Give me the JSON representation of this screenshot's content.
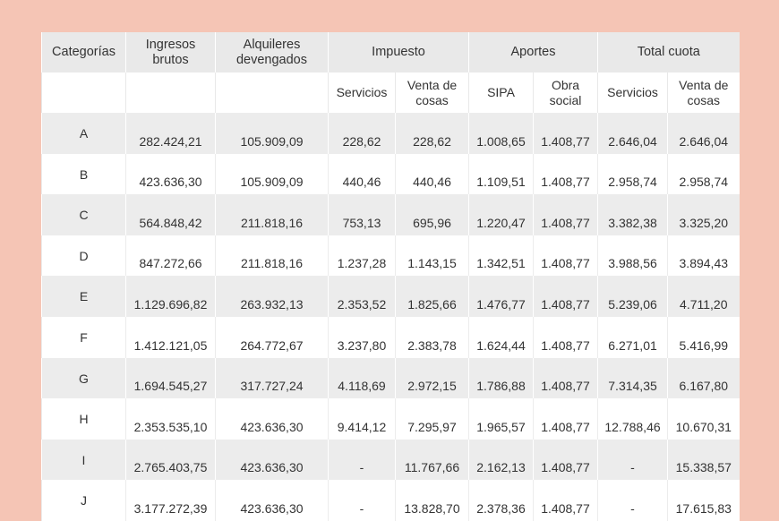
{
  "table": {
    "header_top": [
      "Categorías",
      "Ingresos brutos",
      "Alquileres devengados",
      "Impuesto",
      "Aportes",
      "Total cuota"
    ],
    "header_sub": [
      "Servicios",
      "Venta de cosas",
      "SIPA",
      "Obra social",
      "Servicios",
      "Venta de cosas"
    ],
    "rows": [
      [
        "A",
        "282.424,21",
        "105.909,09",
        "228,62",
        "228,62",
        "1.008,65",
        "1.408,77",
        "2.646,04",
        "2.646,04"
      ],
      [
        "B",
        "423.636,30",
        "105.909,09",
        "440,46",
        "440,46",
        "1.109,51",
        "1.408,77",
        "2.958,74",
        "2.958,74"
      ],
      [
        "C",
        "564.848,42",
        "211.818,16",
        "753,13",
        "695,96",
        "1.220,47",
        "1.408,77",
        "3.382,38",
        "3.325,20"
      ],
      [
        "D",
        "847.272,66",
        "211.818,16",
        "1.237,28",
        "1.143,15",
        "1.342,51",
        "1.408,77",
        "3.988,56",
        "3.894,43"
      ],
      [
        "E",
        "1.129.696,82",
        "263.932,13",
        "2.353,52",
        "1.825,66",
        "1.476,77",
        "1.408,77",
        "5.239,06",
        "4.711,20"
      ],
      [
        "F",
        "1.412.121,05",
        "264.772,67",
        "3.237,80",
        "2.383,78",
        "1.624,44",
        "1.408,77",
        "6.271,01",
        "5.416,99"
      ],
      [
        "G",
        "1.694.545,27",
        "317.727,24",
        "4.118,69",
        "2.972,15",
        "1.786,88",
        "1.408,77",
        "7.314,35",
        "6.167,80"
      ],
      [
        "H",
        "2.353.535,10",
        "423.636,30",
        "9.414,12",
        "7.295,97",
        "1.965,57",
        "1.408,77",
        "12.788,46",
        "10.670,31"
      ],
      [
        "I",
        "2.765.403,75",
        "423.636,30",
        "-",
        "11.767,66",
        "2.162,13",
        "1.408,77",
        "-",
        "15.338,57"
      ],
      [
        "J",
        "3.177.272,39",
        "423.636,30",
        "-",
        "13.828,70",
        "2.378,36",
        "1.408,77",
        "-",
        "17.615,83"
      ]
    ]
  }
}
